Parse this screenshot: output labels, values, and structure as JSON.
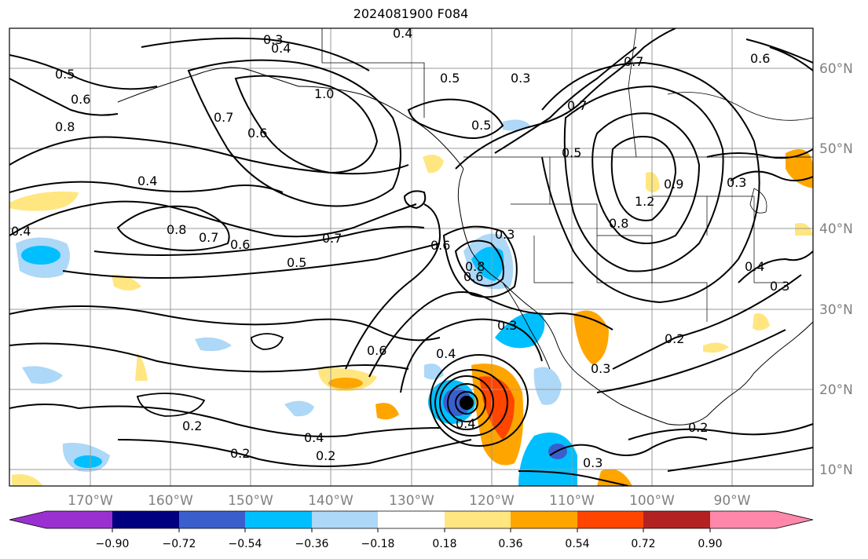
{
  "title": "2024081900 F084",
  "lon_labels": [
    "170°W",
    "160°W",
    "150°W",
    "140°W",
    "130°W",
    "120°W",
    "110°W",
    "100°W",
    "90°W"
  ],
  "lat_labels": [
    "60°N",
    "50°N",
    "40°N",
    "30°N",
    "20°N",
    "10°N"
  ],
  "colorbar": {
    "ticks": [
      "−0.90",
      "−0.72",
      "−0.54",
      "−0.36",
      "−0.18",
      "0.18",
      "0.36",
      "0.54",
      "0.72",
      "0.90"
    ],
    "colors": [
      "#9b30d0",
      "#000080",
      "#3a5fcd",
      "#00bfff",
      "#add8f7",
      "#ffffff",
      "#ffe680",
      "#ffa500",
      "#ff4500",
      "#b22222",
      "#ff88aa"
    ]
  },
  "contour_labels": [
    "0.3",
    "0.4",
    "0.5",
    "0.6",
    "0.8",
    "1.0",
    "0.7",
    "0.4",
    "0.8",
    "0.7",
    "0.6",
    "0.5",
    "0.7",
    "0.4",
    "0.6",
    "0.4",
    "0.2",
    "0.2",
    "0.4",
    "0.2",
    "0.3",
    "0.3",
    "0.3",
    "0.6",
    "0.5",
    "0.3",
    "0.7",
    "0.7",
    "0.6",
    "0.5",
    "0.9",
    "1.2",
    "0.8",
    "0.3",
    "0.4",
    "0.3",
    "0.2",
    "0.2",
    "0.3",
    "0.4",
    "0.5",
    "0.6",
    "0.6",
    "0.8",
    "0.4"
  ],
  "marker": "storm-center"
}
